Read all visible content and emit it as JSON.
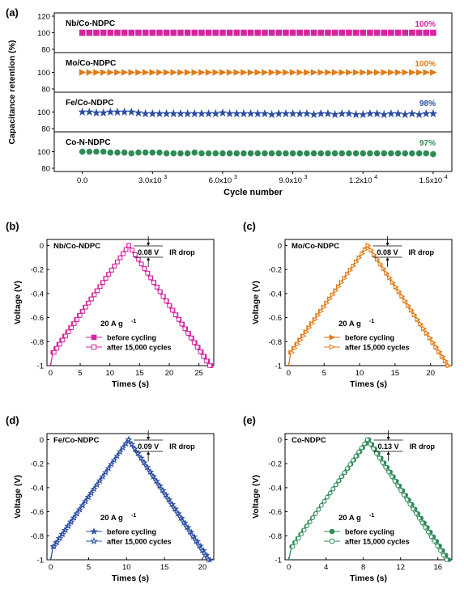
{
  "chart_data": [
    {
      "panel": "(a)",
      "type": "scatter",
      "xlabel": "Cycle number",
      "ylabel": "Capacitance retention (%)",
      "xlim": [
        -1200,
        15800
      ],
      "ylim": [
        80,
        120
      ],
      "xticks": [
        {
          "value": 0,
          "label": "0.0"
        },
        {
          "value": 3000,
          "label": "3.0x10",
          "exp": "3"
        },
        {
          "value": 6000,
          "label": "6.0x10",
          "exp": "3"
        },
        {
          "value": 9000,
          "label": "9.0x10",
          "exp": "3"
        },
        {
          "value": 12000,
          "label": "1.2x10",
          "exp": "4"
        },
        {
          "value": 15000,
          "label": "1.5x10",
          "exp": "4"
        }
      ],
      "yticks": [
        "80",
        "100",
        "120"
      ],
      "cycle_step": 300,
      "subplots": [
        {
          "name": "Nb/Co-NDPC",
          "final_label": "100%",
          "color": "#d6249f",
          "marker": "square",
          "retention": [
            100,
            100,
            100,
            100,
            100,
            100,
            100,
            100,
            100,
            100,
            100,
            100,
            100,
            100,
            100,
            100,
            100,
            100,
            100,
            100,
            100,
            100,
            100,
            100,
            100,
            100,
            100,
            100,
            100,
            100,
            100,
            100,
            100,
            100,
            100,
            100,
            100,
            100,
            100,
            100,
            100,
            100,
            100,
            100,
            100,
            100,
            100,
            100,
            100,
            100,
            100
          ]
        },
        {
          "name": "Mo/Co-NDPC",
          "final_label": "100%",
          "color": "#e07b17",
          "marker": "triangle-right",
          "retention": [
            100,
            100,
            100,
            100,
            100,
            100,
            100,
            100,
            100,
            100,
            100,
            100,
            100,
            100,
            100,
            100,
            100,
            100,
            100,
            100,
            100,
            100,
            100,
            100,
            100,
            100,
            100,
            100,
            100,
            100,
            100,
            100,
            100,
            100,
            100,
            100,
            100,
            100,
            100,
            100,
            100,
            100,
            100,
            100,
            100,
            100,
            100,
            100,
            100,
            100,
            100
          ]
        },
        {
          "name": "Fe/Co-NDPC",
          "final_label": "98%",
          "color": "#2c4fa3",
          "marker": "star",
          "retention": [
            100,
            100,
            99,
            99,
            100,
            100,
            100,
            100,
            99,
            98,
            98,
            98,
            98,
            98,
            98,
            98,
            98,
            98,
            98,
            98,
            99,
            98,
            98,
            98,
            98,
            98,
            98,
            97,
            98,
            98,
            98,
            98,
            98,
            97,
            98,
            98,
            97,
            98,
            98,
            97,
            97,
            98,
            98,
            97,
            98,
            98,
            97,
            98,
            97,
            98,
            98
          ]
        },
        {
          "name": "Co-N-NDPC",
          "final_label": "97%",
          "color": "#2e8b57",
          "marker": "circle",
          "retention": [
            100,
            100,
            100,
            100,
            99,
            99,
            99,
            98,
            99,
            99,
            99,
            99,
            98,
            98,
            98,
            98,
            99,
            98,
            98,
            98,
            98,
            98,
            98,
            98,
            98,
            98,
            98,
            98,
            98,
            98,
            98,
            98,
            98,
            98,
            98,
            98,
            98,
            98,
            98,
            98,
            98,
            98,
            98,
            98,
            98,
            98,
            98,
            98,
            98,
            98,
            97
          ]
        }
      ]
    },
    {
      "panel": "(b)",
      "type": "line",
      "sample": "Nb/Co-NDPC",
      "color": "#d6249f",
      "marker": "square",
      "xlabel": "Times (s)",
      "ylabel": "Voltage (V)",
      "xlim": [
        -0.6,
        27.5
      ],
      "ylim": [
        -1,
        0.05
      ],
      "xticks": [
        0,
        5,
        10,
        15,
        20,
        25
      ],
      "yticks": [
        0,
        -0.2,
        -0.4,
        -0.6,
        -0.8,
        -1
      ],
      "xtick_labels": [
        "0",
        "5",
        "10",
        "15",
        "20",
        "25"
      ],
      "ytick_labels": [
        "0",
        "-0.2",
        "-0.4",
        "-0.6",
        "-0.8",
        "-1"
      ],
      "current_density": "20 A g",
      "current_exp": "-1",
      "ir_drop_label": "0.08 V",
      "ir_drop_text": "IR drop",
      "series": [
        {
          "name": "before cycling",
          "filled": true,
          "x": [
            0,
            0.4,
            13.2,
            27.0
          ],
          "y": [
            -1,
            -0.89,
            0,
            -1
          ]
        },
        {
          "name": "after 15,000 cycles",
          "filled": false,
          "x": [
            0,
            0.4,
            13.0,
            26.6
          ],
          "y": [
            -1,
            -0.89,
            0,
            -1
          ]
        }
      ]
    },
    {
      "panel": "(c)",
      "type": "line",
      "sample": "Mo/Co-NDPC",
      "color": "#e07b17",
      "marker": "triangle-right",
      "xlabel": "Times (s)",
      "ylabel": "Voltage (V)",
      "xlim": [
        -0.5,
        23.0
      ],
      "ylim": [
        -1,
        0.05
      ],
      "xticks": [
        0,
        5,
        10,
        15,
        20
      ],
      "yticks": [
        0,
        -0.2,
        -0.4,
        -0.6,
        -0.8,
        -1
      ],
      "xtick_labels": [
        "0",
        "5",
        "10",
        "15",
        "20"
      ],
      "ytick_labels": [
        "0",
        "-0.2",
        "-0.4",
        "-0.6",
        "-0.8",
        "-1"
      ],
      "current_density": "20 A g",
      "current_exp": "-1",
      "ir_drop_label": "0.08 V",
      "ir_drop_text": "IR drop",
      "series": [
        {
          "name": "before cycling",
          "filled": true,
          "x": [
            0,
            0.3,
            11.2,
            22.6
          ],
          "y": [
            -1,
            -0.89,
            0,
            -1
          ]
        },
        {
          "name": "after 15,000 cycles",
          "filled": false,
          "x": [
            0,
            0.3,
            11.0,
            22.3
          ],
          "y": [
            -1,
            -0.89,
            0,
            -1
          ]
        }
      ]
    },
    {
      "panel": "(d)",
      "type": "line",
      "sample": "Fe/Co-NDPC",
      "color": "#2c4fa3",
      "marker": "star",
      "xlabel": "Times (s)",
      "ylabel": "Voltage (V)",
      "xlim": [
        -0.5,
        21.5
      ],
      "ylim": [
        -1,
        0.05
      ],
      "xticks": [
        0,
        5,
        10,
        15,
        20
      ],
      "yticks": [
        0,
        -0.2,
        -0.4,
        -0.6,
        -0.8,
        -1
      ],
      "xtick_labels": [
        "0",
        "5",
        "10",
        "15",
        "20"
      ],
      "ytick_labels": [
        "0",
        "-0.2",
        "-0.4",
        "-0.6",
        "-0.8",
        "-1"
      ],
      "current_density": "20 A g",
      "current_exp": "-1",
      "ir_drop_label": "0.09 V",
      "ir_drop_text": "IR drop",
      "series": [
        {
          "name": "before cycling",
          "filled": true,
          "x": [
            0,
            0.3,
            10.3,
            21.0
          ],
          "y": [
            -1,
            -0.89,
            0,
            -1
          ]
        },
        {
          "name": "after 15,000 cycles",
          "filled": false,
          "x": [
            0,
            0.3,
            10.1,
            20.6
          ],
          "y": [
            -1,
            -0.89,
            0,
            -1
          ]
        }
      ]
    },
    {
      "panel": "(e)",
      "type": "line",
      "sample": "Co-NDPC",
      "color": "#2e8b57",
      "marker": "circle",
      "xlabel": "Times (s)",
      "ylabel": "Voltage (V)",
      "xlim": [
        -0.4,
        17.5
      ],
      "ylim": [
        -1,
        0.05
      ],
      "xticks": [
        0,
        4,
        8,
        12,
        16
      ],
      "yticks": [
        0,
        -0.2,
        -0.4,
        -0.6,
        -0.8,
        -1
      ],
      "xtick_labels": [
        "0",
        "4",
        "8",
        "12",
        "16"
      ],
      "ytick_labels": [
        "0",
        "-0.2",
        "-0.4",
        "-0.6",
        "-0.8",
        "-1"
      ],
      "current_density": "20 A g",
      "current_exp": "-1",
      "ir_drop_label": "0.13 V",
      "ir_drop_text": "IR drop",
      "series": [
        {
          "name": "before cycling",
          "filled": true,
          "x": [
            0,
            0.3,
            8.6,
            17.2
          ],
          "y": [
            -1,
            -0.89,
            0,
            -1
          ]
        },
        {
          "name": "after 15,000 cycles",
          "filled": false,
          "x": [
            0,
            0.3,
            8.3,
            16.8
          ],
          "y": [
            -1,
            -0.89,
            0,
            -1
          ]
        }
      ]
    }
  ]
}
